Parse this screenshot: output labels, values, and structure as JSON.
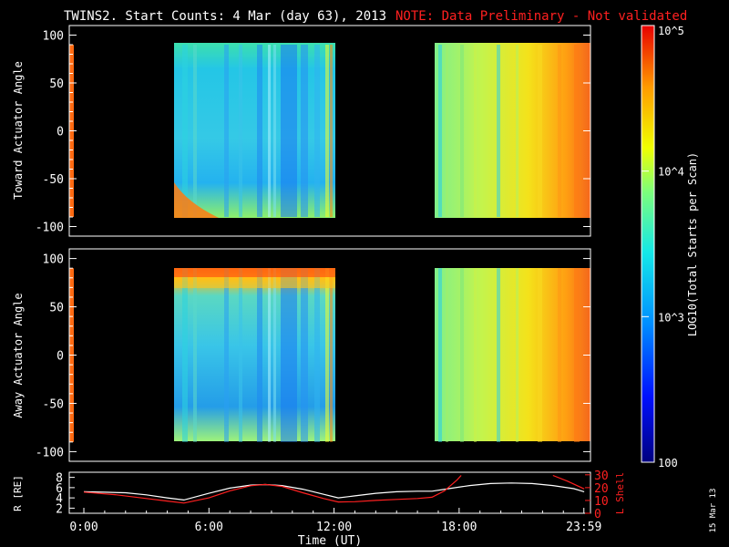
{
  "title": "TWINS2. Start Counts:  4 Mar (day  63), 2013",
  "note": "NOTE: Data Preliminary - Not validated",
  "date_stamp": "15 Mar 13",
  "colors": {
    "background": "#000000",
    "axes": "#ffffff",
    "note": "#ff0000",
    "r_line": "#ffffff",
    "lshell_line": "#ff0000"
  },
  "colorbar": {
    "label": "LOG10(Total Starts per Scan)",
    "ticks": [
      "10^5",
      "10^4",
      "10^3",
      "100"
    ]
  },
  "chart_data": [
    {
      "type": "heatmap",
      "panel": "toward",
      "ylabel": "Toward Actuator Angle",
      "ylim": [
        -110,
        110
      ],
      "yticks": [
        100,
        50,
        0,
        -50,
        -100
      ],
      "xlim_hours": [
        -0.7,
        24.3
      ],
      "data_intervals_ut": [
        [
          "04:46",
          "12:20"
        ],
        [
          "16:38",
          "24:00"
        ]
      ],
      "angle_range": [
        -90,
        90
      ],
      "color_scale": "log",
      "value_range": [
        100,
        100000
      ]
    },
    {
      "type": "heatmap",
      "panel": "away",
      "ylabel": "Away Actuator Angle",
      "ylim": [
        -110,
        110
      ],
      "yticks": [
        100,
        50,
        0,
        -50,
        -100
      ],
      "xlim_hours": [
        -0.7,
        24.3
      ],
      "data_intervals_ut": [
        [
          "04:46",
          "12:20"
        ],
        [
          "16:38",
          "24:00"
        ]
      ],
      "angle_range": [
        -90,
        90
      ],
      "color_scale": "log",
      "value_range": [
        100,
        100000
      ]
    },
    {
      "type": "line",
      "panel": "orbit",
      "ylabel_left": "R [RE]",
      "ylabel_right": "L Shell",
      "xlabel": "Time (UT)",
      "xticks": [
        "0:00",
        "6:00",
        "12:00",
        "18:00",
        "23:59"
      ],
      "yticks_left": [
        8,
        6,
        4,
        2
      ],
      "yticks_right": [
        30,
        20,
        10,
        0
      ],
      "series": [
        {
          "axis": "left",
          "x": [
            0,
            1,
            2,
            3,
            4,
            4.8,
            6,
            7,
            8,
            8.7,
            9.5,
            10.5,
            11.5,
            12.2,
            13,
            14,
            15,
            16,
            16.7,
            17.5,
            18.5,
            19.5,
            20.5,
            21.5,
            22.5,
            23.5,
            24
          ],
          "y": [
            5.2,
            5.1,
            5.0,
            4.6,
            4.0,
            3.6,
            4.9,
            5.9,
            6.5,
            6.6,
            6.4,
            5.7,
            4.7,
            4.0,
            4.4,
            4.9,
            5.2,
            5.3,
            5.3,
            5.8,
            6.4,
            6.8,
            6.9,
            6.8,
            6.4,
            5.8,
            5.2
          ]
        },
        {
          "axis": "right",
          "x": [
            0,
            1.5,
            3,
            4,
            4.8,
            6,
            7,
            8,
            8.7,
            9.5,
            10.5,
            11.5,
            12.2,
            13,
            14,
            15,
            16,
            16.7,
            17.3,
            17.9,
            18.1
          ],
          "y": [
            16.5,
            14.5,
            11.5,
            9.5,
            8.0,
            12.0,
            17.5,
            21.5,
            22.5,
            21.0,
            16.0,
            11.5,
            8.8,
            9.0,
            10.0,
            10.8,
            11.5,
            12.5,
            17.5,
            26.0,
            29.5
          ]
        },
        {
          "axis": "right",
          "x": [
            22.5,
            23.2,
            23.8,
            24
          ],
          "y": [
            29.5,
            25.0,
            20.5,
            19.0
          ]
        }
      ]
    }
  ]
}
